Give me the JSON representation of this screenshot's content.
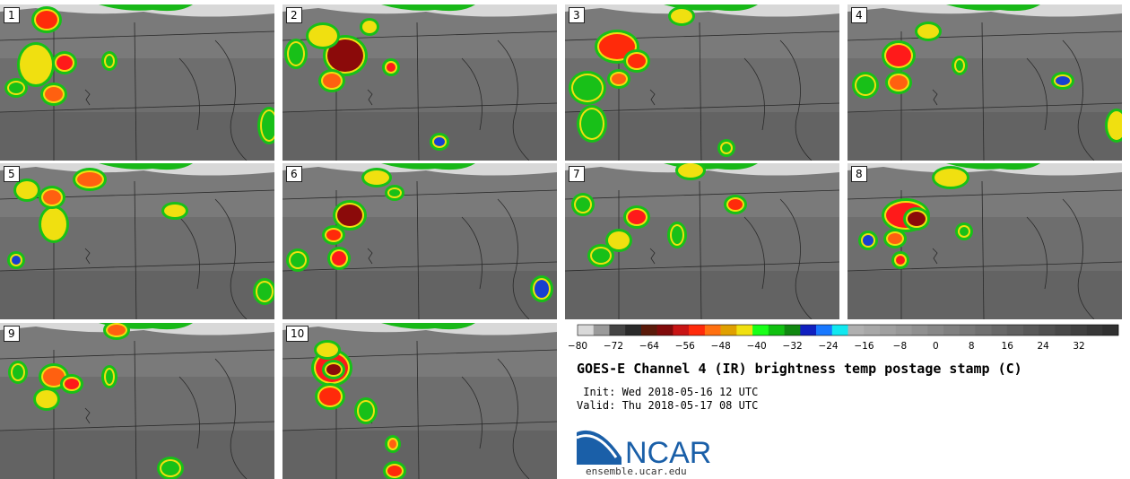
{
  "panels": [
    {
      "label": "1",
      "blobs": [
        [
          52,
          22,
          12,
          10,
          "#ff2a0a"
        ],
        [
          72,
          70,
          9,
          8,
          "#ff1a1a"
        ],
        [
          40,
          72,
          16,
          20,
          "#f0e010"
        ],
        [
          60,
          105,
          10,
          8,
          "#ff6010"
        ],
        [
          122,
          68,
          4,
          6,
          "#18c018"
        ],
        [
          300,
          140,
          8,
          16,
          "#18c018"
        ],
        [
          18,
          98,
          8,
          6,
          "#18c018"
        ]
      ]
    },
    {
      "label": "2",
      "blobs": [
        [
          385,
          62,
          20,
          18,
          "#8b0a0a"
        ],
        [
          360,
          40,
          14,
          10,
          "#f0e010"
        ],
        [
          330,
          60,
          8,
          12,
          "#18c018"
        ],
        [
          370,
          90,
          10,
          8,
          "#ff6010"
        ],
        [
          436,
          75,
          5,
          5,
          "#ff1a1a"
        ],
        [
          490,
          158,
          6,
          5,
          "#1840d0"
        ],
        [
          412,
          30,
          6,
          5,
          "#f0e010"
        ]
      ]
    },
    {
      "label": "3",
      "blobs": [
        [
          688,
          52,
          20,
          14,
          "#ff2a0a"
        ],
        [
          710,
          68,
          10,
          8,
          "#ff2a0a"
        ],
        [
          655,
          98,
          16,
          14,
          "#18c018"
        ],
        [
          660,
          138,
          12,
          16,
          "#18c018"
        ],
        [
          690,
          88,
          8,
          6,
          "#ff6010"
        ],
        [
          810,
          165,
          5,
          5,
          "#18c018"
        ],
        [
          760,
          18,
          10,
          6,
          "#f0e010"
        ]
      ]
    },
    {
      "label": "4",
      "blobs": [
        [
          1002,
          62,
          14,
          12,
          "#ff1a1a"
        ],
        [
          1002,
          92,
          10,
          8,
          "#ff6010"
        ],
        [
          965,
          95,
          10,
          10,
          "#18c018"
        ],
        [
          1035,
          35,
          10,
          6,
          "#f0e010"
        ],
        [
          1245,
          140,
          8,
          14,
          "#f0e010"
        ],
        [
          1185,
          90,
          8,
          5,
          "#1840d0"
        ],
        [
          1070,
          73,
          4,
          6,
          "#18c018"
        ]
      ]
    },
    {
      "label": "5",
      "blobs": [
        [
          60,
          250,
          12,
          16,
          "#f0e010"
        ],
        [
          58,
          220,
          10,
          8,
          "#ff6010"
        ],
        [
          30,
          212,
          10,
          8,
          "#f0e010"
        ],
        [
          100,
          200,
          14,
          8,
          "#ff6010"
        ],
        [
          18,
          290,
          5,
          5,
          "#1840d0"
        ],
        [
          195,
          235,
          10,
          5,
          "#f0e010"
        ],
        [
          295,
          325,
          8,
          10,
          "#18c018"
        ]
      ]
    },
    {
      "label": "6",
      "blobs": [
        [
          390,
          240,
          14,
          12,
          "#8b0a0a"
        ],
        [
          372,
          262,
          8,
          6,
          "#ff2a0a"
        ],
        [
          378,
          288,
          8,
          8,
          "#ff1a1a"
        ],
        [
          332,
          290,
          8,
          8,
          "#18c018"
        ],
        [
          420,
          198,
          12,
          6,
          "#f0e010"
        ],
        [
          604,
          322,
          8,
          10,
          "#1840d0"
        ],
        [
          440,
          215,
          6,
          4,
          "#18c018"
        ]
      ]
    },
    {
      "label": "7",
      "blobs": [
        [
          710,
          242,
          10,
          8,
          "#ff1a1a"
        ],
        [
          690,
          268,
          10,
          8,
          "#f0e010"
        ],
        [
          820,
          228,
          8,
          6,
          "#ff2a0a"
        ],
        [
          650,
          228,
          8,
          8,
          "#18c018"
        ],
        [
          755,
          262,
          6,
          10,
          "#18c018"
        ],
        [
          670,
          285,
          10,
          8,
          "#18c018"
        ],
        [
          770,
          190,
          12,
          6,
          "#f0e010"
        ]
      ]
    },
    {
      "label": "8",
      "blobs": [
        [
          1010,
          240,
          22,
          14,
          "#ff1a1a"
        ],
        [
          1022,
          244,
          10,
          8,
          "#8b0a0a"
        ],
        [
          998,
          266,
          8,
          6,
          "#ff6010"
        ],
        [
          1004,
          290,
          5,
          5,
          "#ff1a1a"
        ],
        [
          968,
          268,
          6,
          6,
          "#1840d0"
        ],
        [
          1060,
          198,
          16,
          8,
          "#f0e010"
        ],
        [
          1075,
          258,
          5,
          5,
          "#18c018"
        ]
      ]
    },
    {
      "label": "9",
      "blobs": [
        [
          60,
          420,
          12,
          10,
          "#ff6010"
        ],
        [
          52,
          445,
          10,
          8,
          "#f0e010"
        ],
        [
          80,
          428,
          8,
          6,
          "#ff1a1a"
        ],
        [
          20,
          415,
          6,
          8,
          "#18c018"
        ],
        [
          122,
          420,
          4,
          8,
          "#18c018"
        ],
        [
          190,
          522,
          10,
          8,
          "#18c018"
        ],
        [
          130,
          368,
          10,
          6,
          "#ff6010"
        ]
      ]
    },
    {
      "label": "10",
      "blobs": [
        [
          370,
          410,
          18,
          16,
          "#ff1a1a"
        ],
        [
          372,
          412,
          8,
          6,
          "#8b0a0a"
        ],
        [
          368,
          442,
          12,
          10,
          "#ff2a0a"
        ],
        [
          365,
          390,
          10,
          6,
          "#f0e010"
        ],
        [
          408,
          458,
          8,
          10,
          "#18c018"
        ],
        [
          440,
          525,
          8,
          6,
          "#ff2a0a"
        ],
        [
          438,
          495,
          4,
          5,
          "#ff6010"
        ]
      ]
    }
  ],
  "colorbar": {
    "ticks": [
      "−80",
      "−72",
      "−64",
      "−56",
      "−48",
      "−40",
      "−32",
      "−24",
      "−16",
      "−8",
      "0",
      "8",
      "16",
      "24",
      "32"
    ],
    "colors": [
      "#d9d9d9",
      "#9a9a9a",
      "#444444",
      "#2a2a2a",
      "#5a1a0a",
      "#800a0a",
      "#c81414",
      "#ff2a0a",
      "#ff7010",
      "#e0a000",
      "#f0e010",
      "#18ff18",
      "#10c010",
      "#108810",
      "#1020c0",
      "#1878ff",
      "#10e8f0",
      "#b0b0b0",
      "#a8a8a8",
      "#a0a0a0",
      "#989898",
      "#909090",
      "#888888",
      "#808080",
      "#787878",
      "#707070",
      "#686868",
      "#606060",
      "#585858",
      "#505050",
      "#484848",
      "#404040",
      "#383838",
      "#303030"
    ]
  },
  "title": "GOES-E Channel 4 (IR) brightness temp postage stamp (C)",
  "init_line": " Init: Wed 2018-05-16 12 UTC",
  "valid_line": "Valid: Thu 2018-05-17 08 UTC",
  "logo": {
    "text": "NCAR",
    "url": "ensemble.ucar.edu",
    "color": "#1a5fa8"
  }
}
